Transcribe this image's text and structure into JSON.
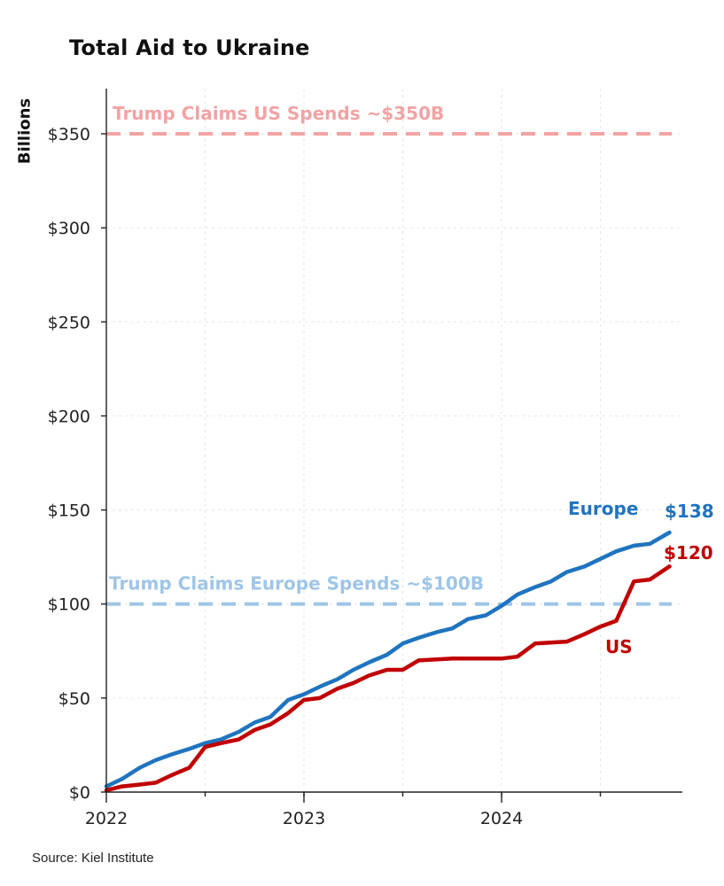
{
  "chart_data": {
    "type": "line",
    "title": "Total Aid to Ukraine",
    "ylabel": "Billions",
    "xlabel": "",
    "ylim": [
      0,
      375
    ],
    "xlim": [
      2022.0,
      2024.95
    ],
    "y_ticks": [
      {
        "value": 0,
        "label": "$0"
      },
      {
        "value": 50,
        "label": "$50"
      },
      {
        "value": 100,
        "label": "$100"
      },
      {
        "value": 150,
        "label": "$150"
      },
      {
        "value": 200,
        "label": "$200"
      },
      {
        "value": 250,
        "label": "$250"
      },
      {
        "value": 300,
        "label": "$300"
      },
      {
        "value": 350,
        "label": "$350"
      }
    ],
    "x_ticks": [
      {
        "value": 2022,
        "label": "2022"
      },
      {
        "value": 2023,
        "label": "2023"
      },
      {
        "value": 2024,
        "label": "2024"
      }
    ],
    "reference_lines": [
      {
        "value": 350,
        "label": "Trump Claims US Spends ~$350B",
        "color": "#f2a3a3"
      },
      {
        "value": 100,
        "label": "Trump Claims Europe Spends ~$100B",
        "color": "#9fc5e8"
      }
    ],
    "series": [
      {
        "name": "Europe",
        "end_label": "$138",
        "color": "#1f74c0",
        "x": [
          2022.0,
          2022.08,
          2022.17,
          2022.25,
          2022.33,
          2022.42,
          2022.5,
          2022.58,
          2022.67,
          2022.75,
          2022.83,
          2022.92,
          2023.0,
          2023.08,
          2023.17,
          2023.25,
          2023.33,
          2023.42,
          2023.5,
          2023.58,
          2023.67,
          2023.75,
          2023.83,
          2023.92,
          2024.0,
          2024.08,
          2024.17,
          2024.25,
          2024.33,
          2024.42,
          2024.5,
          2024.58,
          2024.67,
          2024.75,
          2024.85
        ],
        "values": [
          3,
          7,
          13,
          17,
          20,
          23,
          26,
          28,
          32,
          37,
          40,
          49,
          52,
          56,
          60,
          65,
          69,
          73,
          79,
          82,
          85,
          87,
          92,
          94,
          99,
          105,
          109,
          112,
          117,
          120,
          124,
          128,
          131,
          132,
          138
        ]
      },
      {
        "name": "US",
        "end_label": "$120",
        "color": "#c00000",
        "x": [
          2022.0,
          2022.08,
          2022.17,
          2022.25,
          2022.33,
          2022.42,
          2022.5,
          2022.58,
          2022.67,
          2022.75,
          2022.83,
          2022.92,
          2023.0,
          2023.08,
          2023.17,
          2023.25,
          2023.33,
          2023.42,
          2023.5,
          2023.58,
          2023.67,
          2023.75,
          2023.83,
          2023.92,
          2024.0,
          2024.08,
          2024.17,
          2024.25,
          2024.33,
          2024.42,
          2024.5,
          2024.58,
          2024.67,
          2024.75,
          2024.85
        ],
        "values": [
          1,
          3,
          4,
          5,
          9,
          13,
          24,
          26,
          28,
          33,
          36,
          42,
          49,
          50,
          55,
          58,
          62,
          65,
          65,
          70,
          70.5,
          71,
          71,
          71,
          71,
          72,
          79,
          79.5,
          80,
          84,
          88,
          91,
          112,
          113,
          120
        ]
      }
    ]
  },
  "source": "Source: Kiel Institute"
}
